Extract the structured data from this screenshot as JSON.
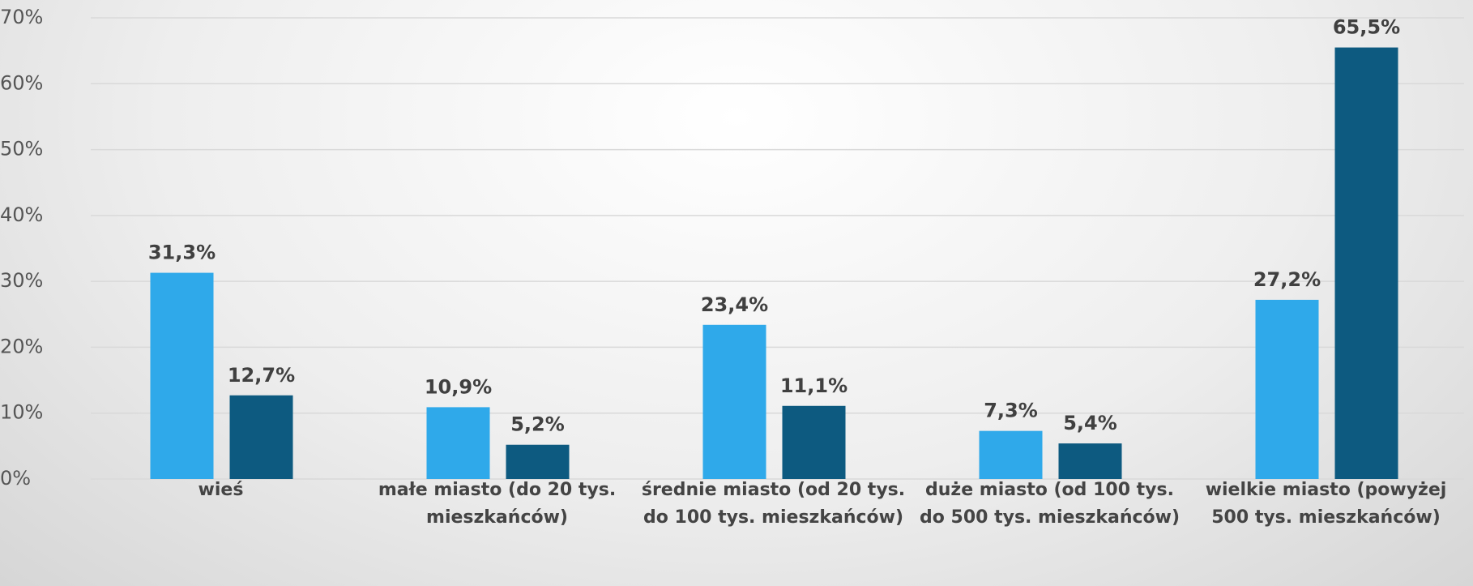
{
  "chart_data": {
    "type": "bar",
    "categories": [
      "wieś",
      "małe miasto (do 20 tys. mieszkańców)",
      "średnie miasto (od 20 tys. do 100 tys. mieszkańców)",
      "duże miasto (od 100 tys. do 500 tys. mieszkańców)",
      "wielkie miasto (powyżej 500 tys. mieszkańców)"
    ],
    "series": [
      {
        "color": "#2fa9ea",
        "values": [
          31.3,
          10.9,
          23.4,
          7.3,
          27.2
        ],
        "value_labels": [
          "31,3%",
          "10,9%",
          "23,4%",
          "7,3%",
          "27,2%"
        ]
      },
      {
        "color": "#0d5a80",
        "values": [
          12.7,
          5.2,
          11.1,
          5.4,
          65.5
        ],
        "value_labels": [
          "12,7%",
          "5,2%",
          "11,1%",
          "5,4%",
          "65,5%"
        ]
      }
    ],
    "ylim": [
      0,
      70
    ],
    "yticks": [
      {
        "value": 0,
        "label": "0%"
      },
      {
        "value": 10,
        "label": "10%"
      },
      {
        "value": 20,
        "label": "20%"
      },
      {
        "value": 30,
        "label": "30%"
      },
      {
        "value": 40,
        "label": "40%"
      },
      {
        "value": 50,
        "label": "50%"
      },
      {
        "value": 60,
        "label": "60%"
      },
      {
        "value": 70,
        "label": "70%"
      }
    ],
    "grid": true
  }
}
